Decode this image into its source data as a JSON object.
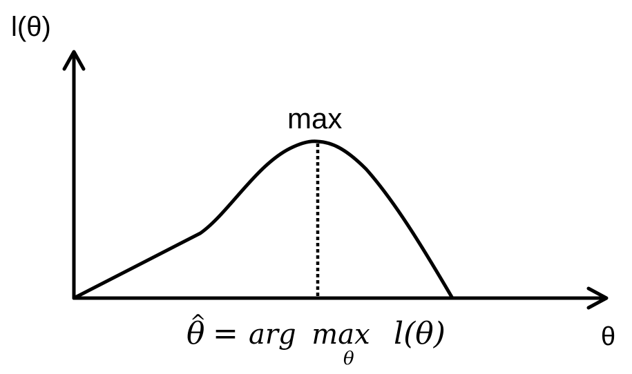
{
  "diagram": {
    "y_axis_label": "l(θ)",
    "x_axis_label": "θ",
    "peak_label": "max",
    "equation": {
      "lhs": "θ",
      "hat": "^",
      "equals": "=",
      "rhs_word": "arg max",
      "rhs_function": "l(θ)",
      "subscript": "θ"
    }
  },
  "colors": {
    "stroke": "#000000",
    "background": "#ffffff"
  }
}
